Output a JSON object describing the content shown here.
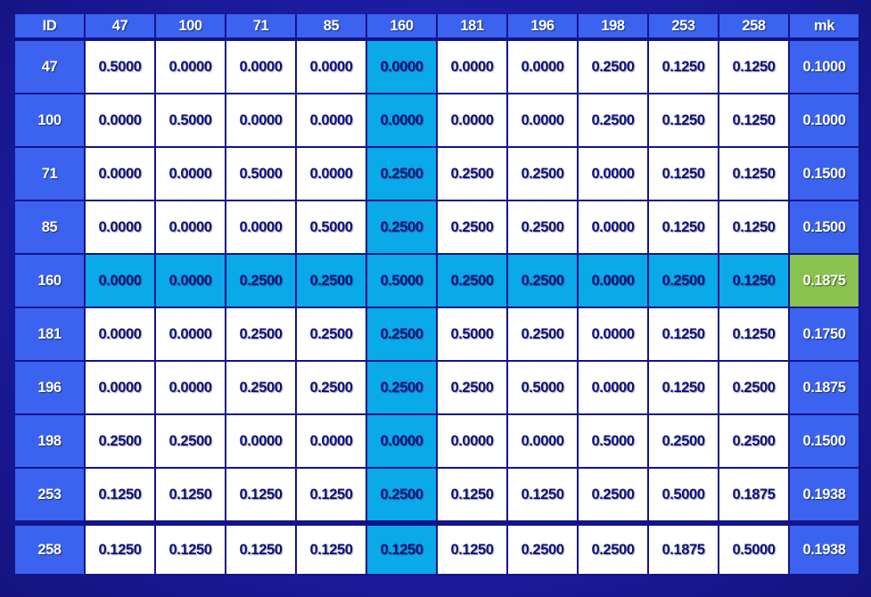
{
  "header": [
    "ID",
    "47",
    "100",
    "71",
    "85",
    "160",
    "181",
    "196",
    "198",
    "253",
    "258",
    "mk"
  ],
  "rows": [
    {
      "id": "47",
      "values": [
        "0.5000",
        "0.0000",
        "0.0000",
        "0.0000",
        "0.0000",
        "0.0000",
        "0.0000",
        "0.2500",
        "0.1250",
        "0.1250"
      ],
      "mk": "0.1000"
    },
    {
      "id": "100",
      "values": [
        "0.0000",
        "0.5000",
        "0.0000",
        "0.0000",
        "0.0000",
        "0.0000",
        "0.0000",
        "0.2500",
        "0.1250",
        "0.1250"
      ],
      "mk": "0.1000"
    },
    {
      "id": "71",
      "values": [
        "0.0000",
        "0.0000",
        "0.5000",
        "0.0000",
        "0.2500",
        "0.2500",
        "0.2500",
        "0.0000",
        "0.1250",
        "0.1250"
      ],
      "mk": "0.1500"
    },
    {
      "id": "85",
      "values": [
        "0.0000",
        "0.0000",
        "0.0000",
        "0.5000",
        "0.2500",
        "0.2500",
        "0.2500",
        "0.0000",
        "0.1250",
        "0.1250"
      ],
      "mk": "0.1500"
    },
    {
      "id": "160",
      "values": [
        "0.0000",
        "0.0000",
        "0.2500",
        "0.2500",
        "0.5000",
        "0.2500",
        "0.2500",
        "0.0000",
        "0.2500",
        "0.1250"
      ],
      "mk": "0.1875"
    },
    {
      "id": "181",
      "values": [
        "0.0000",
        "0.0000",
        "0.2500",
        "0.2500",
        "0.2500",
        "0.5000",
        "0.2500",
        "0.0000",
        "0.1250",
        "0.1250"
      ],
      "mk": "0.1750"
    },
    {
      "id": "196",
      "values": [
        "0.0000",
        "0.0000",
        "0.2500",
        "0.2500",
        "0.2500",
        "0.2500",
        "0.5000",
        "0.0000",
        "0.1250",
        "0.2500"
      ],
      "mk": "0.1875"
    },
    {
      "id": "198",
      "values": [
        "0.2500",
        "0.2500",
        "0.0000",
        "0.0000",
        "0.0000",
        "0.0000",
        "0.0000",
        "0.5000",
        "0.2500",
        "0.2500"
      ],
      "mk": "0.1500"
    },
    {
      "id": "253",
      "values": [
        "0.1250",
        "0.1250",
        "0.1250",
        "0.1250",
        "0.2500",
        "0.1250",
        "0.1250",
        "0.2500",
        "0.5000",
        "0.1875"
      ],
      "mk": "0.1938"
    },
    {
      "id": "258",
      "values": [
        "0.1250",
        "0.1250",
        "0.1250",
        "0.1250",
        "0.1250",
        "0.1250",
        "0.2500",
        "0.2500",
        "0.1875",
        "0.5000"
      ],
      "mk": "0.1938"
    }
  ],
  "highlight": {
    "row": 4,
    "col": 4
  },
  "colors": {
    "background": "#1b1a9a",
    "header": "#3b63f0",
    "cell": "#ffffff",
    "highlight": "#0aa9e9",
    "selected_mk": "#8ac24f",
    "text_dark": "#0d1180"
  }
}
